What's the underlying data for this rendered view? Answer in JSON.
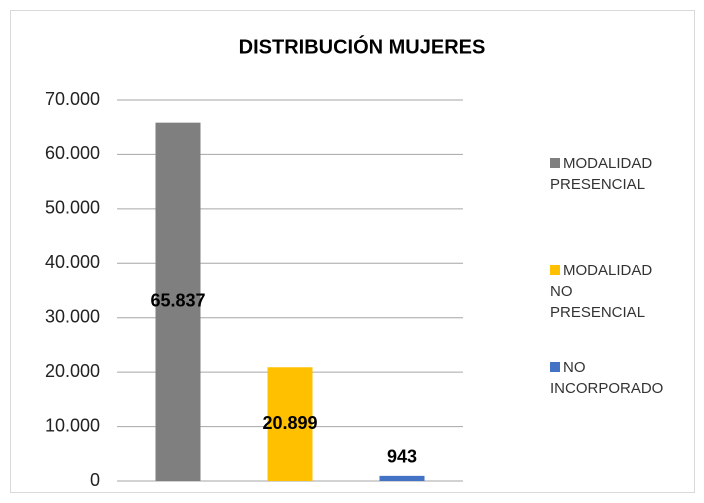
{
  "chart_data": {
    "type": "bar",
    "title": "DISTRIBUCIÓN MUJERES",
    "categories": [
      null
    ],
    "series": [
      {
        "name": "MODALIDAD PRESENCIAL",
        "color": "#7f7f7f",
        "values": [
          65837
        ],
        "value_labels": [
          "65.837"
        ]
      },
      {
        "name": "MODALIDAD NO PRESENCIAL",
        "color": "#ffc000",
        "values": [
          20899
        ],
        "value_labels": [
          "20.899"
        ]
      },
      {
        "name": "NO INCORPORADO",
        "color": "#4472c4",
        "values": [
          943
        ],
        "value_labels": [
          "943"
        ]
      }
    ],
    "ylim": [
      0,
      70000
    ],
    "yticks": [
      0,
      {
        "value": 10000,
        "label": "10.000"
      },
      {
        "value": 20000,
        "label": "20.000"
      },
      {
        "value": 30000,
        "label": "30.000"
      },
      {
        "value": 40000,
        "label": "40.000"
      },
      {
        "value": 50000,
        "label": "50.000"
      },
      {
        "value": 60000,
        "label": "60.000"
      },
      {
        "value": 70000,
        "label": "70.000"
      }
    ],
    "grid": true,
    "legend": "right"
  }
}
